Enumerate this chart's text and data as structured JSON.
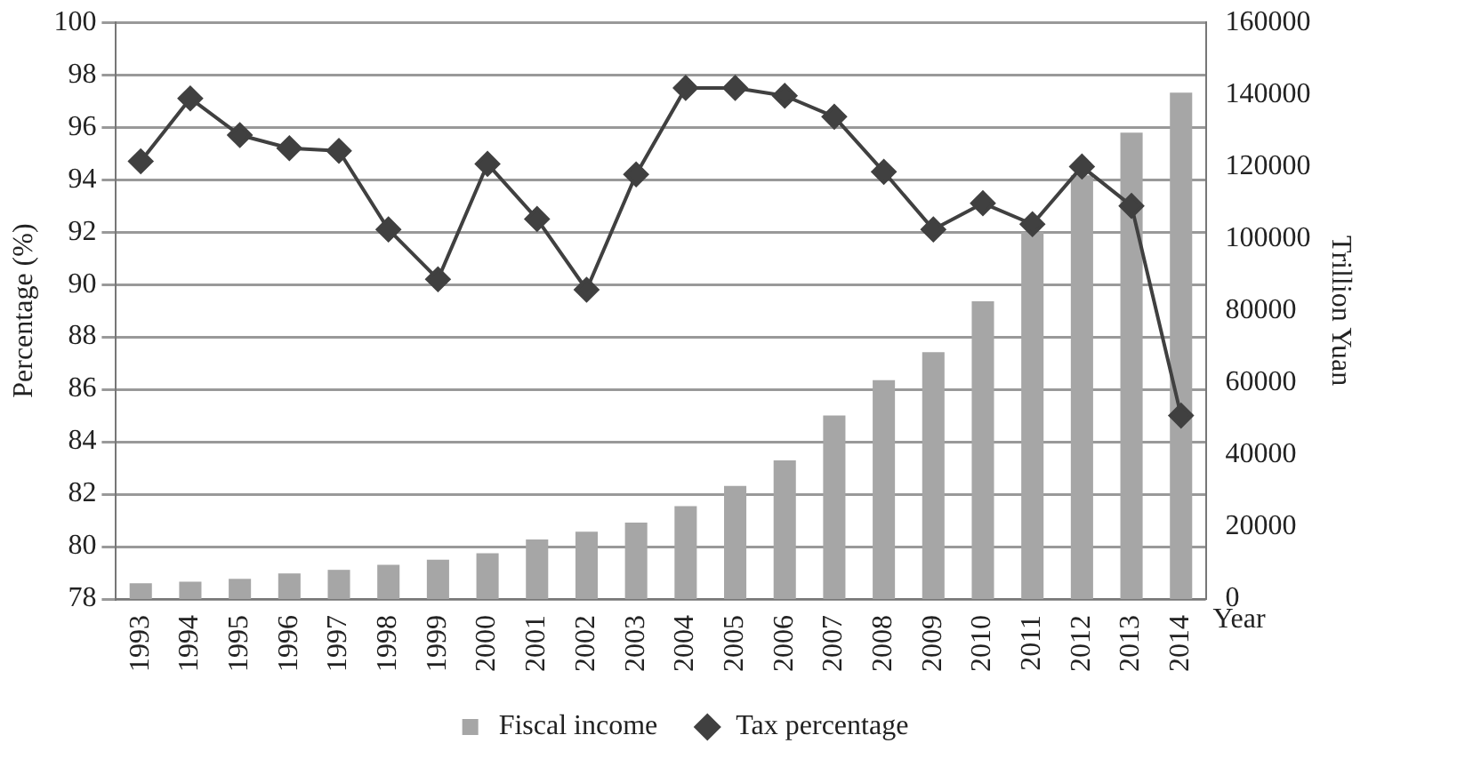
{
  "chart_data": {
    "type": "bar",
    "xlabel": "Year",
    "ylabel": "Percentage (%)",
    "y2label": "Trillion Yuan",
    "categories": [
      "1993",
      "1994",
      "1995",
      "1996",
      "1997",
      "1998",
      "1999",
      "2000",
      "2001",
      "2002",
      "2003",
      "2004",
      "2005",
      "2006",
      "2007",
      "2008",
      "2009",
      "2010",
      "2011",
      "2012",
      "2013",
      "2014"
    ],
    "series": [
      {
        "name": "Fiscal income",
        "axis": "y2",
        "color": "#a6a6a6",
        "values": [
          4400,
          4800,
          5600,
          7100,
          8100,
          9500,
          10900,
          12700,
          16500,
          18700,
          21200,
          25800,
          31400,
          38500,
          50900,
          60700,
          68500,
          82600,
          101800,
          117600,
          129400,
          140500
        ]
      },
      {
        "name": "Tax percentage",
        "type": "line",
        "axis": "y",
        "color": "#404040",
        "marker": "diamond",
        "values": [
          94.7,
          97.1,
          95.7,
          95.2,
          95.1,
          92.1,
          90.2,
          94.6,
          92.5,
          89.8,
          94.2,
          97.5,
          97.5,
          97.2,
          96.4,
          94.3,
          92.1,
          93.1,
          92.3,
          94.5,
          93.0,
          85.0
        ]
      }
    ],
    "ylim": [
      78,
      100
    ],
    "yticks": [
      78,
      80,
      82,
      84,
      86,
      88,
      90,
      92,
      94,
      96,
      98,
      100
    ],
    "y2lim": [
      0,
      160000
    ],
    "y2ticks": [
      0,
      20000,
      40000,
      60000,
      80000,
      100000,
      120000,
      140000,
      160000
    ],
    "grid": "y",
    "legend": "bottom"
  }
}
